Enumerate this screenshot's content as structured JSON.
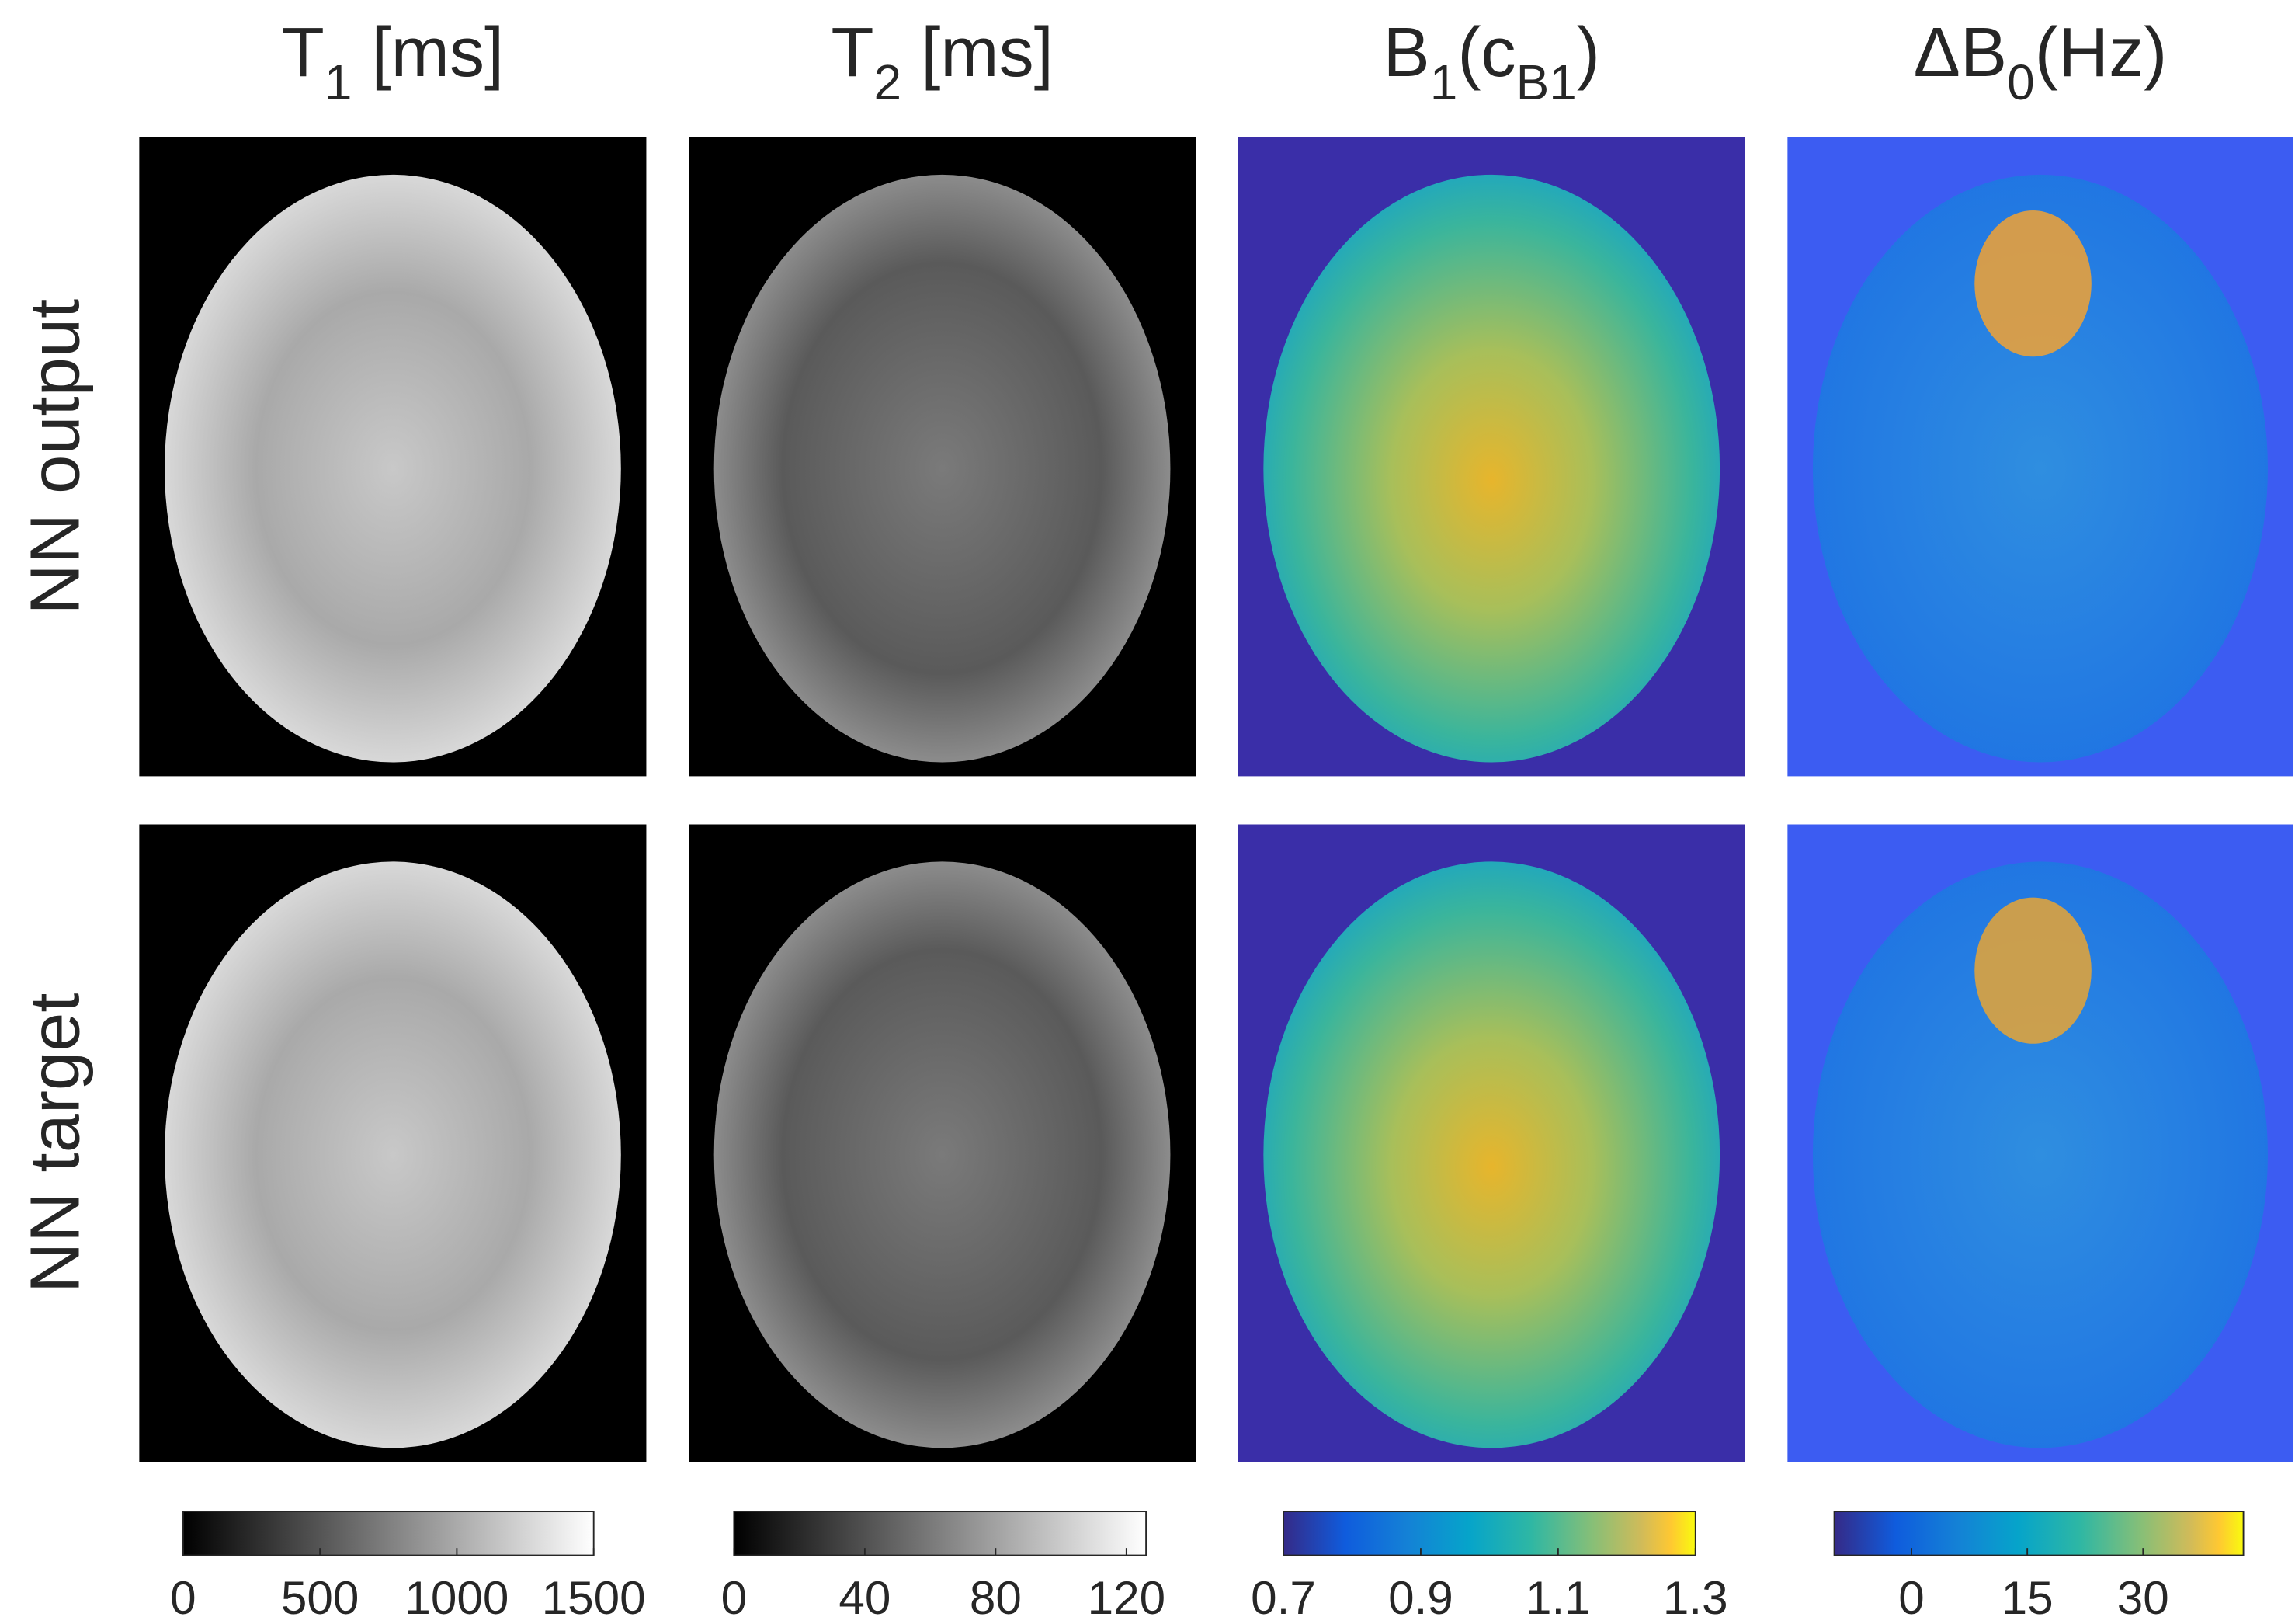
{
  "row_labels": [
    "NN output",
    "NN target"
  ],
  "chart_data": [
    {
      "type": "image",
      "title_parts": [
        {
          "text": "T",
          "sub": false
        },
        {
          "text": "1",
          "sub": true
        },
        {
          "text": " [ms]",
          "sub": false
        }
      ],
      "colormap": "gray",
      "clim": [
        0,
        1500
      ],
      "ticks": [
        0,
        500,
        1000,
        1500
      ]
    },
    {
      "type": "image",
      "title_parts": [
        {
          "text": "T",
          "sub": false
        },
        {
          "text": "2",
          "sub": true
        },
        {
          "text": " [ms]",
          "sub": false
        }
      ],
      "colormap": "gray",
      "clim": [
        0,
        126
      ],
      "ticks": [
        0,
        40,
        80,
        120
      ]
    },
    {
      "type": "image",
      "title_parts": [
        {
          "text": "B",
          "sub": false
        },
        {
          "text": "1",
          "sub": true
        },
        {
          "text": "(c",
          "sub": false
        },
        {
          "text": "B1",
          "sub": true
        },
        {
          "text": ")",
          "sub": false
        }
      ],
      "colormap": "parula",
      "clim": [
        0.7,
        1.3
      ],
      "ticks": [
        0.7,
        0.9,
        1.1,
        1.3
      ]
    },
    {
      "type": "image",
      "title_parts": [
        {
          "text": "ΔB",
          "sub": false
        },
        {
          "text": "0",
          "sub": true
        },
        {
          "text": "(Hz)",
          "sub": false
        }
      ],
      "colormap": "parula",
      "clim": [
        -10,
        43
      ],
      "ticks": [
        0,
        15,
        30
      ]
    }
  ]
}
